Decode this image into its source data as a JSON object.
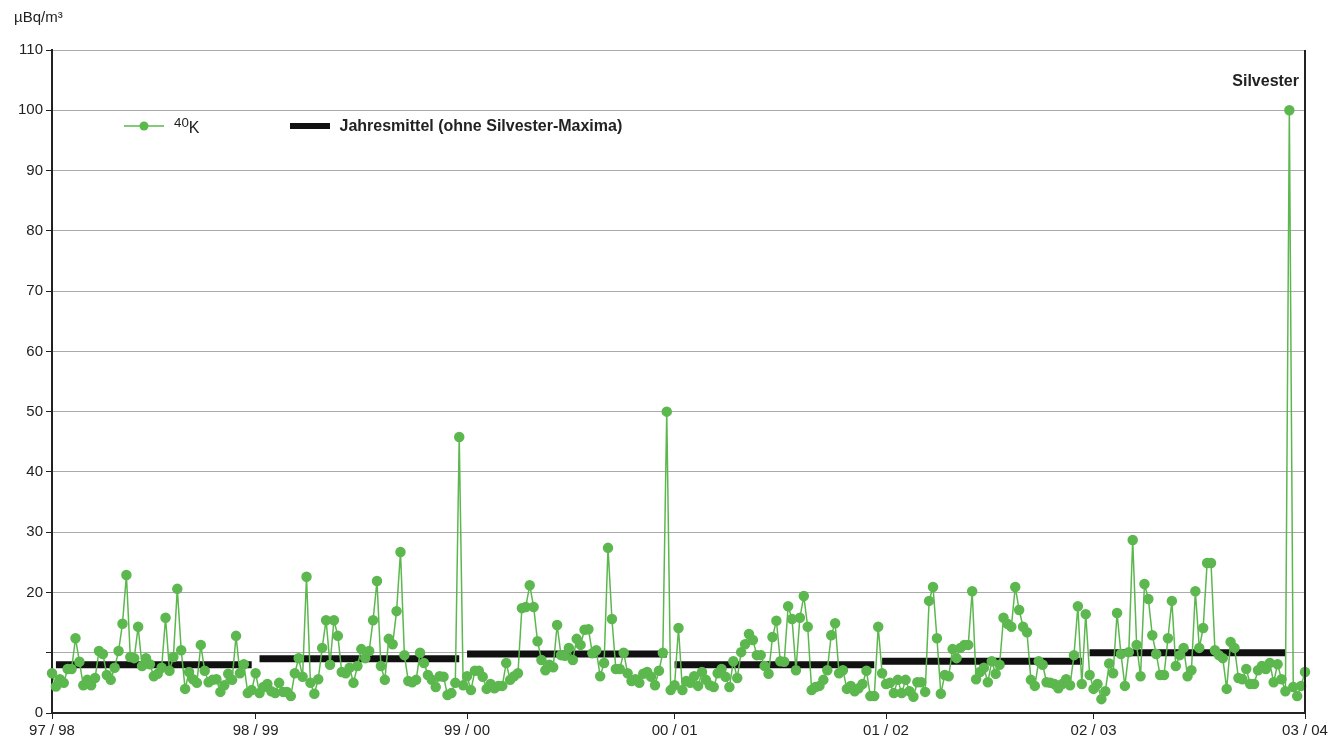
{
  "chart_data": {
    "type": "line",
    "ylabel": "µBq/m³",
    "categories": [
      "97 / 98",
      null,
      null,
      null,
      null,
      null,
      null,
      null,
      null,
      null,
      null,
      null,
      null,
      null,
      null,
      null,
      null,
      null,
      null,
      null,
      null,
      null,
      null,
      null,
      null,
      null,
      null,
      null,
      null,
      null,
      null,
      null,
      null,
      null,
      null,
      null,
      null,
      null,
      null,
      null,
      null,
      null,
      null,
      null,
      null,
      null,
      null,
      null,
      null,
      null,
      null,
      null,
      "98 / 99",
      null,
      null,
      null,
      null,
      null,
      null,
      null,
      null,
      null,
      null,
      null,
      null,
      null,
      null,
      null,
      null,
      null,
      null,
      null,
      null,
      null,
      null,
      null,
      null,
      null,
      null,
      null,
      null,
      null,
      null,
      null,
      null,
      null,
      null,
      null,
      null,
      null,
      null,
      null,
      null,
      null,
      null,
      null,
      null,
      null,
      null,
      null,
      null,
      null,
      null,
      null,
      null,
      null,
      "99 / 00",
      null,
      null,
      null,
      null,
      null,
      null,
      null,
      null,
      null,
      null,
      null,
      null,
      null,
      null,
      null,
      null,
      null,
      null,
      null,
      null,
      null,
      null,
      null,
      null,
      null,
      null,
      null,
      null,
      null,
      null,
      null,
      null,
      null,
      null,
      null,
      null,
      null,
      null,
      null,
      null,
      null,
      null,
      null,
      null,
      null,
      null,
      null,
      null,
      null,
      null,
      null,
      null,
      "00 / 01",
      null,
      null,
      null,
      null,
      null,
      null,
      null,
      null,
      null,
      null,
      null,
      null,
      null,
      null,
      null,
      null,
      null,
      null,
      null,
      null,
      null,
      null,
      null,
      null,
      null,
      null,
      null,
      null,
      null,
      null,
      null,
      null,
      null,
      null,
      null,
      null,
      null,
      null,
      null,
      null,
      null,
      null,
      null,
      null,
      null,
      null,
      null,
      null,
      null,
      null,
      null,
      null,
      null,
      "01 / 02",
      null,
      null,
      null,
      null,
      null,
      null,
      null,
      null,
      null,
      null,
      null,
      null,
      null,
      null,
      null,
      null,
      null,
      null,
      null,
      null,
      null,
      null,
      null,
      null,
      null,
      null,
      null,
      null,
      null,
      null,
      null,
      null,
      null,
      null,
      null,
      null,
      null,
      null,
      null,
      null,
      null,
      null,
      null,
      null,
      null,
      null,
      null,
      null,
      null,
      null,
      null,
      null,
      "02 / 03",
      null,
      null,
      null,
      null,
      null,
      null,
      null,
      null,
      null,
      null,
      null,
      null,
      null,
      null,
      null,
      null,
      null,
      null,
      null,
      null,
      null,
      null,
      null,
      null,
      null,
      null,
      null,
      null,
      null,
      null,
      null,
      null,
      null,
      null,
      null,
      null,
      null,
      null,
      null,
      null,
      null,
      null,
      null,
      null,
      null,
      null,
      null,
      null,
      null,
      null,
      null,
      null,
      null,
      "03 / 04"
    ],
    "ylim": [
      0,
      110
    ],
    "yticks": [
      0,
      {
        "value": 10,
        "label": null
      },
      20,
      30,
      40,
      50,
      60,
      70,
      80,
      90,
      100,
      110
    ],
    "grid": "y",
    "legend": "top left",
    "line_style": "solid",
    "annotations": [
      "Silvester"
    ],
    "series": [
      {
        "name": "$^{40}$K",
        "color": "#5cb84e",
        "marker": "circle",
        "values": [
          6.6,
          4.4,
          5.6,
          5.0,
          7.3,
          7.3,
          12.4,
          8.5,
          4.6,
          5.5,
          4.6,
          5.8,
          10.3,
          9.8,
          6.3,
          5.5,
          7.5,
          10.3,
          14.8,
          22.9,
          9.3,
          9.1,
          14.3,
          7.8,
          9.1,
          8.1,
          6.1,
          6.5,
          7.5,
          15.8,
          7.0,
          9.3,
          20.6,
          10.4,
          4.0,
          6.8,
          5.6,
          5.0,
          11.3,
          7.0,
          5.1,
          5.5,
          5.6,
          3.5,
          4.6,
          6.5,
          5.5,
          12.8,
          6.6,
          8.1,
          3.3,
          3.8,
          6.6,
          3.3,
          4.3,
          4.8,
          3.6,
          3.3,
          5.0,
          3.5,
          3.5,
          2.8,
          6.6,
          9.1,
          6.0,
          22.6,
          5.0,
          3.2,
          5.6,
          10.8,
          15.4,
          8.0,
          15.4,
          12.8,
          6.8,
          6.6,
          7.5,
          5.0,
          7.8,
          10.6,
          9.1,
          10.3,
          15.4,
          21.9,
          7.8,
          5.5,
          12.3,
          11.4,
          16.9,
          26.7,
          9.6,
          5.3,
          5.1,
          5.5,
          10.0,
          8.3,
          6.3,
          5.5,
          4.3,
          6.1,
          6.0,
          3.0,
          3.3,
          5.0,
          45.8,
          4.6,
          6.1,
          3.8,
          7.0,
          7.0,
          6.0,
          4.0,
          4.8,
          4.1,
          4.5,
          4.5,
          8.3,
          5.5,
          6.1,
          6.6,
          17.4,
          17.6,
          21.2,
          17.6,
          11.9,
          8.8,
          7.1,
          8.0,
          7.6,
          14.6,
          9.6,
          9.5,
          10.8,
          8.8,
          12.3,
          11.3,
          13.8,
          13.9,
          9.9,
          10.4,
          6.1,
          8.3,
          27.4,
          15.6,
          7.3,
          7.3,
          10.0,
          6.6,
          5.3,
          5.6,
          5.0,
          6.5,
          6.8,
          6.0,
          4.6,
          7.0,
          10.0,
          50.0,
          3.8,
          4.6,
          14.1,
          3.8,
          5.3,
          5.0,
          6.1,
          4.5,
          6.8,
          5.5,
          4.6,
          4.3,
          6.6,
          7.3,
          6.0,
          4.3,
          8.6,
          5.8,
          10.1,
          11.4,
          13.1,
          12.1,
          9.6,
          9.6,
          7.8,
          6.5,
          12.6,
          15.3,
          8.6,
          8.5,
          17.7,
          15.6,
          7.1,
          15.8,
          19.4,
          14.3,
          3.8,
          4.3,
          4.5,
          5.5,
          7.1,
          12.9,
          14.9,
          6.6,
          7.1,
          4.0,
          4.5,
          3.6,
          4.1,
          4.8,
          7.0,
          2.8,
          2.8,
          14.3,
          6.6,
          4.8,
          5.0,
          3.3,
          5.5,
          3.3,
          5.5,
          3.6,
          2.7,
          5.1,
          5.1,
          3.5,
          18.6,
          20.9,
          12.4,
          3.2,
          6.3,
          6.1,
          10.6,
          9.1,
          10.8,
          11.3,
          11.3,
          20.2,
          5.6,
          6.8,
          7.5,
          5.1,
          8.6,
          6.5,
          8.0,
          15.8,
          14.8,
          14.3,
          20.9,
          17.1,
          14.3,
          13.4,
          5.5,
          4.5,
          8.6,
          8.0,
          5.1,
          5.0,
          4.8,
          4.1,
          4.8,
          5.6,
          4.6,
          9.6,
          17.7,
          4.8,
          16.4,
          6.3,
          4.0,
          4.8,
          2.3,
          3.6,
          8.2,
          6.6,
          16.6,
          9.8,
          4.5,
          10.1,
          28.7,
          11.3,
          6.1,
          21.4,
          18.9,
          12.9,
          9.8,
          6.3,
          6.3,
          12.4,
          18.6,
          7.8,
          9.6,
          10.8,
          6.1,
          7.1,
          20.2,
          10.8,
          14.1,
          24.9,
          24.9,
          10.4,
          9.6,
          9.1,
          4.0,
          11.8,
          10.8,
          5.8,
          5.6,
          7.3,
          4.8,
          4.8,
          7.1,
          7.8,
          7.3,
          8.3,
          5.1,
          8.1,
          5.6,
          3.6,
          100,
          4.3,
          2.8,
          4.5,
          6.8
        ]
      },
      {
        "name": "Jahresmittel  (ohne Silvester-Maxima)",
        "color": "#111111",
        "marker": "none",
        "values": [
          null,
          8.0,
          8.0,
          8.0,
          8.0,
          8.0,
          8.0,
          8.0,
          8.0,
          8.0,
          8.0,
          8.0,
          8.0,
          8.0,
          8.0,
          8.0,
          8.0,
          8.0,
          8.0,
          8.0,
          8.0,
          8.0,
          8.0,
          8.0,
          8.0,
          8.0,
          8.0,
          8.0,
          8.0,
          8.0,
          8.0,
          8.0,
          8.0,
          8.0,
          8.0,
          8.0,
          8.0,
          8.0,
          8.0,
          8.0,
          8.0,
          8.0,
          8.0,
          8.0,
          8.0,
          8.0,
          8.0,
          8.0,
          8.0,
          8.0,
          8.0,
          8.0,
          null,
          9.0,
          9.0,
          9.0,
          9.0,
          9.0,
          9.0,
          9.0,
          9.0,
          9.0,
          9.0,
          9.0,
          9.0,
          9.0,
          9.0,
          9.0,
          9.0,
          9.0,
          9.0,
          9.0,
          9.0,
          9.0,
          9.0,
          9.0,
          9.0,
          9.0,
          9.0,
          9.0,
          9.0,
          9.0,
          9.0,
          9.0,
          9.0,
          9.0,
          9.0,
          9.0,
          9.0,
          9.0,
          9.0,
          9.0,
          9.0,
          9.0,
          9.0,
          9.0,
          9.0,
          9.0,
          9.0,
          9.0,
          9.0,
          9.0,
          9.0,
          9.0,
          9.0,
          null,
          9.8,
          9.8,
          9.8,
          9.8,
          9.8,
          9.8,
          9.8,
          9.8,
          9.8,
          9.8,
          9.8,
          9.8,
          9.8,
          9.8,
          9.8,
          9.8,
          9.8,
          9.8,
          9.8,
          9.8,
          9.8,
          9.8,
          9.8,
          9.8,
          9.8,
          9.8,
          9.8,
          9.8,
          9.8,
          9.8,
          9.8,
          9.8,
          9.8,
          9.8,
          9.8,
          9.8,
          9.8,
          9.8,
          9.8,
          9.8,
          9.8,
          9.8,
          9.8,
          9.8,
          9.8,
          9.8,
          9.8,
          9.8,
          9.8,
          9.8,
          9.8,
          9.8,
          null,
          8.0,
          8.0,
          8.0,
          8.0,
          8.0,
          8.0,
          8.0,
          8.0,
          8.0,
          8.0,
          8.0,
          8.0,
          8.0,
          8.0,
          8.0,
          8.0,
          8.0,
          8.0,
          8.0,
          8.0,
          8.0,
          8.0,
          8.0,
          8.0,
          8.0,
          8.0,
          8.0,
          8.0,
          8.0,
          8.0,
          8.0,
          8.0,
          8.0,
          8.0,
          8.0,
          8.0,
          8.0,
          8.0,
          8.0,
          8.0,
          8.0,
          8.0,
          8.0,
          8.0,
          8.0,
          8.0,
          8.0,
          8.0,
          8.0,
          8.0,
          8.0,
          8.0,
          null,
          8.6,
          8.6,
          8.6,
          8.6,
          8.6,
          8.6,
          8.6,
          8.6,
          8.6,
          8.6,
          8.6,
          8.6,
          8.6,
          8.6,
          8.6,
          8.6,
          8.6,
          8.6,
          8.6,
          8.6,
          8.6,
          8.6,
          8.6,
          8.6,
          8.6,
          8.6,
          8.6,
          8.6,
          8.6,
          8.6,
          8.6,
          8.6,
          8.6,
          8.6,
          8.6,
          8.6,
          8.6,
          8.6,
          8.6,
          8.6,
          8.6,
          8.6,
          8.6,
          8.6,
          8.6,
          8.6,
          8.6,
          8.6,
          8.6,
          8.6,
          8.6,
          8.6,
          null,
          10.0,
          10.0,
          10.0,
          10.0,
          10.0,
          10.0,
          10.0,
          10.0,
          10.0,
          10.0,
          10.0,
          10.0,
          10.0,
          10.0,
          10.0,
          10.0,
          10.0,
          10.0,
          10.0,
          10.0,
          10.0,
          10.0,
          10.0,
          10.0,
          10.0,
          10.0,
          10.0,
          10.0,
          10.0,
          10.0,
          10.0,
          10.0,
          10.0,
          10.0,
          10.0,
          10.0,
          10.0,
          10.0,
          10.0,
          10.0,
          10.0,
          10.0,
          10.0,
          10.0,
          10.0,
          10.0,
          10.0,
          10.0,
          10.0,
          10.0,
          10.0,
          null,
          null,
          null,
          null,
          null
        ]
      }
    ]
  }
}
